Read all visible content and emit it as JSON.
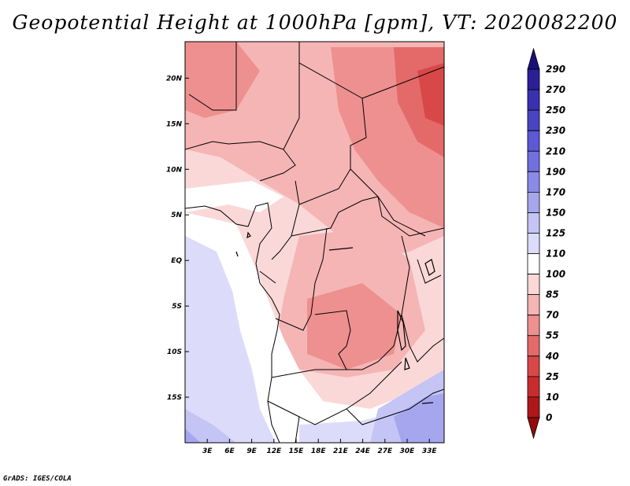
{
  "title": "Geopotential Height at 1000hPa [gpm], VT: 2020082200",
  "footer": "GrADS: IGES/COLA",
  "map": {
    "lon_range": [
      0,
      35
    ],
    "lat_range": [
      -20,
      24
    ],
    "x_ticks": [
      "3E",
      "6E",
      "9E",
      "12E",
      "15E",
      "18E",
      "21E",
      "24E",
      "27E",
      "30E",
      "33E"
    ],
    "x_tick_values": [
      3,
      6,
      9,
      12,
      15,
      18,
      21,
      24,
      27,
      30,
      33
    ],
    "y_ticks": [
      "20N",
      "15N",
      "10N",
      "5N",
      "EQ",
      "5S",
      "10S",
      "15S"
    ],
    "y_tick_values": [
      20,
      15,
      10,
      5,
      0,
      -5,
      -10,
      -15
    ]
  },
  "colorbar": {
    "levels": [
      "290",
      "270",
      "250",
      "230",
      "210",
      "190",
      "170",
      "150",
      "125",
      "110",
      "100",
      "85",
      "70",
      "55",
      "40",
      "25",
      "10",
      "0"
    ],
    "colors": [
      "#1a0f7a",
      "#2b1f98",
      "#3a30b0",
      "#4a44c4",
      "#5c58d6",
      "#7070e0",
      "#8a8ae8",
      "#a6a6ef",
      "#c4c4f5",
      "#dcdcfa",
      "#ffffff",
      "#fbd8d8",
      "#f5b5b5",
      "#ee9090",
      "#e46a6a",
      "#d94848",
      "#c82c2c",
      "#b01818",
      "#960a0a"
    ]
  }
}
